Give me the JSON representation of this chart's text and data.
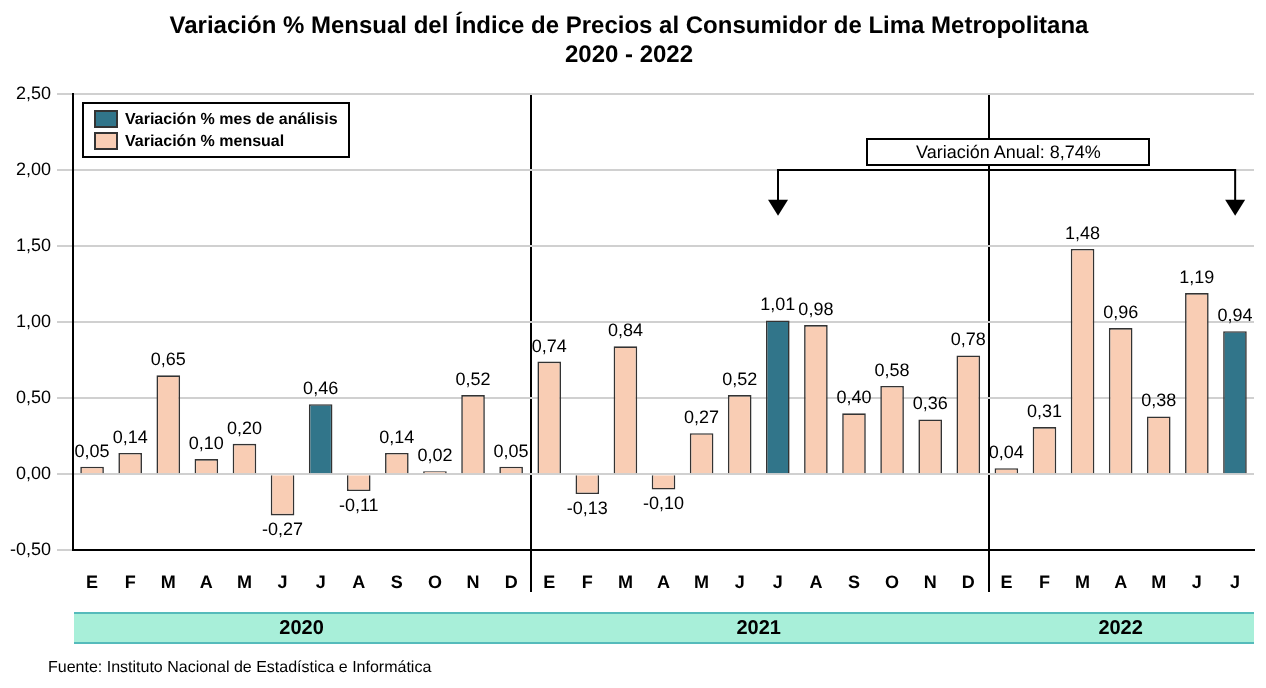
{
  "chart_data": {
    "type": "bar",
    "title": "Variación % Mensual del Índice de Precios al Consumidor de Lima Metropolitana",
    "subtitle": "2020 - 2022",
    "categories": [
      "E",
      "F",
      "M",
      "A",
      "M",
      "J",
      "J",
      "A",
      "S",
      "O",
      "N",
      "D",
      "E",
      "F",
      "M",
      "A",
      "M",
      "J",
      "J",
      "A",
      "S",
      "O",
      "N",
      "D",
      "E",
      "F",
      "M",
      "A",
      "M",
      "J",
      "J"
    ],
    "series": [
      {
        "name": "Variación % mes de análisis",
        "color": "#31758a",
        "values": [
          null,
          null,
          null,
          null,
          null,
          null,
          0.46,
          null,
          null,
          null,
          null,
          null,
          null,
          null,
          null,
          null,
          null,
          null,
          1.01,
          null,
          null,
          null,
          null,
          null,
          null,
          null,
          null,
          null,
          null,
          null,
          0.94
        ],
        "value_labels": [
          null,
          null,
          null,
          null,
          null,
          null,
          "0,46",
          null,
          null,
          null,
          null,
          null,
          null,
          null,
          null,
          null,
          null,
          null,
          "1,01",
          null,
          null,
          null,
          null,
          null,
          null,
          null,
          null,
          null,
          null,
          null,
          "0,94"
        ]
      },
      {
        "name": "Variación % mensual",
        "color": "#f9cdb4",
        "values": [
          0.05,
          0.14,
          0.65,
          0.1,
          0.2,
          -0.27,
          null,
          -0.11,
          0.14,
          0.02,
          0.52,
          0.05,
          0.74,
          -0.13,
          0.84,
          -0.1,
          0.27,
          0.52,
          null,
          0.98,
          0.4,
          0.58,
          0.36,
          0.78,
          0.04,
          0.31,
          1.48,
          0.96,
          0.38,
          1.19,
          null
        ],
        "value_labels": [
          "0,05",
          "0,14",
          "0,65",
          "0,10",
          "0,20",
          "-0,27",
          null,
          "-0,11",
          "0,14",
          "0,02",
          "0,52",
          "0,05",
          "0,74",
          "-0,13",
          "0,84",
          "-0,10",
          "0,27",
          "0,52",
          null,
          "0,98",
          "0,40",
          "0,58",
          "0,36",
          "0,78",
          "0,04",
          "0,31",
          "1,48",
          "0,96",
          "0,38",
          "1,19",
          null
        ]
      }
    ],
    "ylim": [
      -0.5,
      2.5
    ],
    "yticks": [
      {
        "value": -0.5,
        "label": "-0,50"
      },
      {
        "value": 0,
        "label": "0,00"
      },
      {
        "value": 0.5,
        "label": "0,50"
      },
      {
        "value": 1,
        "label": "1,00"
      },
      {
        "value": 1.5,
        "label": "1,50"
      },
      {
        "value": 2,
        "label": "2,00"
      },
      {
        "value": 2.5,
        "label": "2,50"
      }
    ],
    "grid": "y",
    "legend": "top left",
    "annotations": [
      "Variación Anual: 8,74%",
      "2020",
      "2021",
      "2022",
      "Fuente: Instituto Nacional de Estadística e Informática"
    ]
  }
}
